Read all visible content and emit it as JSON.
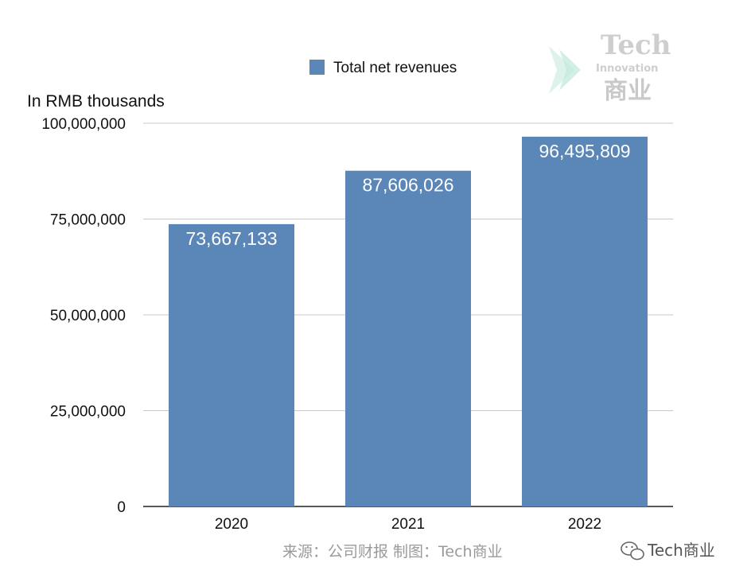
{
  "chart_data": {
    "type": "bar",
    "categories": [
      "2020",
      "2021",
      "2022"
    ],
    "series": [
      {
        "name": "Total net revenues",
        "values": [
          73667133,
          87606026,
          96495809
        ]
      }
    ],
    "data_labels": [
      "73,667,133",
      "87,606,026",
      "96,495,809"
    ],
    "title": "",
    "xlabel": "",
    "ylabel": "In RMB thousands",
    "ylim": [
      0,
      100000000
    ],
    "yticks": [
      0,
      25000000,
      50000000,
      75000000,
      100000000
    ],
    "ytick_labels": [
      "0",
      "25,000,000",
      "50,000,000",
      "75,000,000",
      "100,000,000"
    ],
    "grid": true,
    "legend": "top-center",
    "bar_color": "#5b86b8"
  },
  "legend": {
    "label": "Total net revenues"
  },
  "source_note": "来源：公司财报 制图：Tech商业",
  "watermark": {
    "line1": "Tech",
    "line2": "Innovation",
    "line3": "商业"
  },
  "account": {
    "label": "Tech商业",
    "icon": "wechat-icon"
  }
}
